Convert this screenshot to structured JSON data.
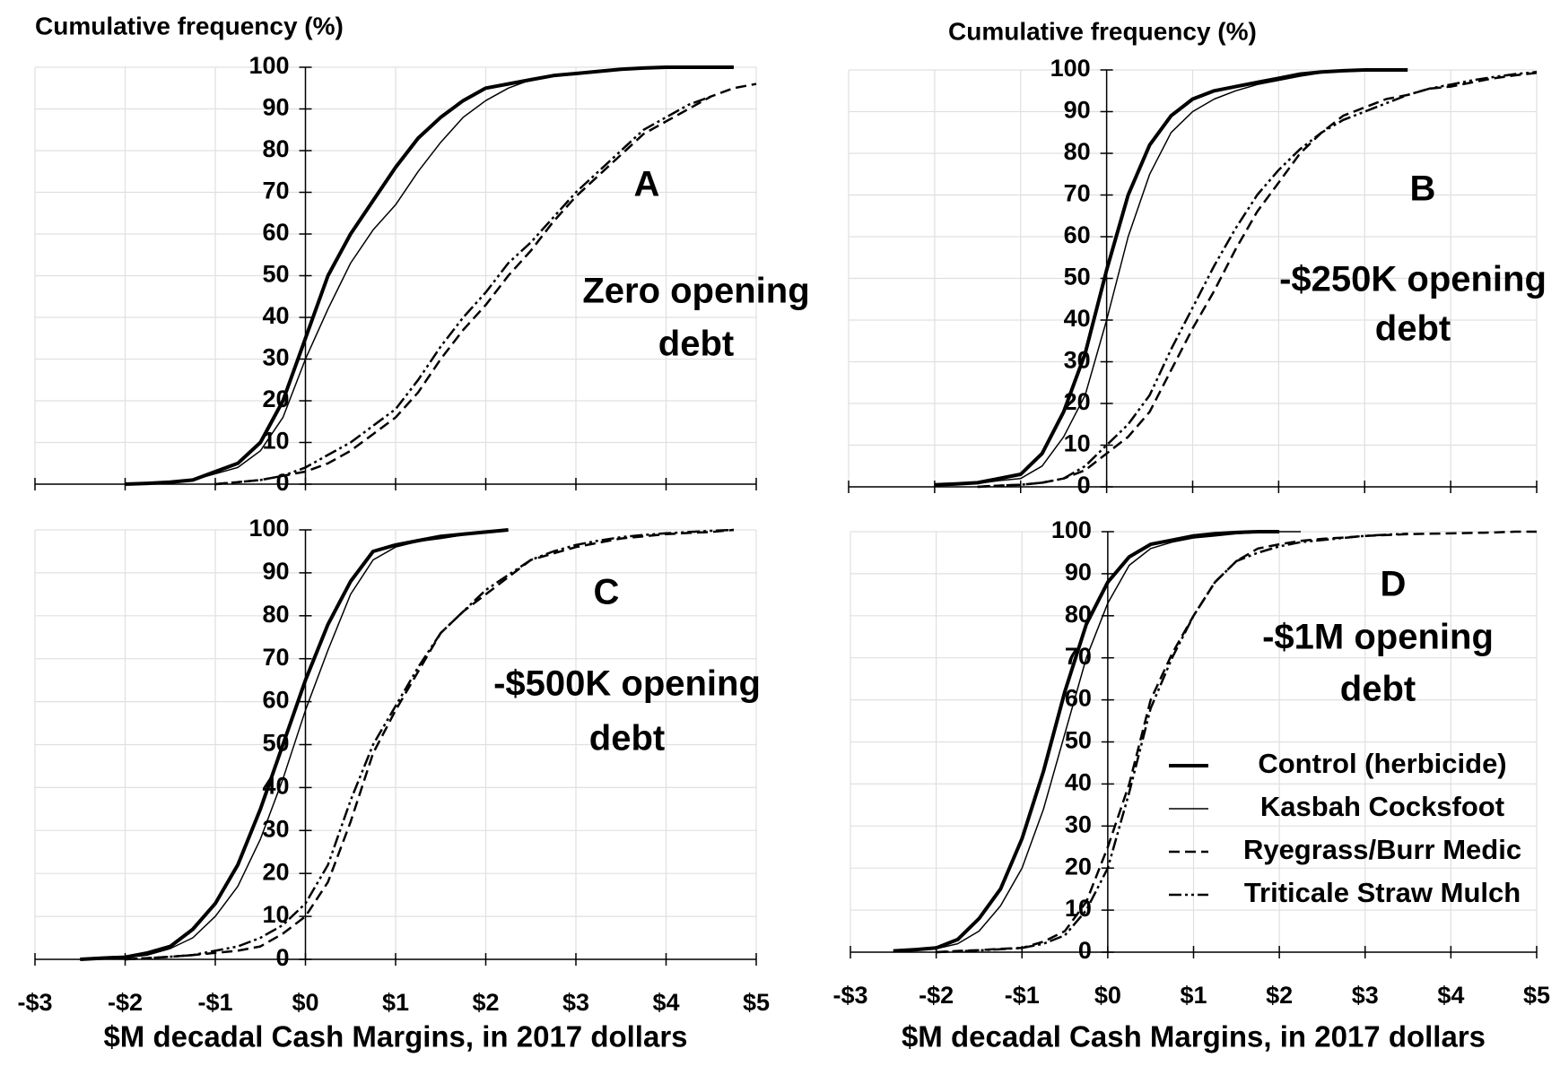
{
  "chart_data": [
    {
      "type": "line",
      "title": "Cumulative frequency (%)",
      "panel_label": "A",
      "annotations": [
        "Zero opening",
        "debt"
      ],
      "x": [
        -2.5,
        -2.25,
        -2,
        -1.75,
        -1.5,
        -1.25,
        -1,
        -0.75,
        -0.5,
        -0.25,
        0,
        0.25,
        0.5,
        0.75,
        1,
        1.25,
        1.5,
        1.75,
        2,
        2.25,
        2.5,
        2.75,
        3,
        3.25,
        3.5,
        3.75,
        4,
        4.25,
        4.5,
        4.75,
        5
      ],
      "xlim": [
        -3,
        5
      ],
      "xticks": [
        -3,
        -2,
        -1,
        0,
        1,
        2,
        3,
        4,
        5
      ],
      "ylim": [
        0,
        100
      ],
      "yticks": [
        0,
        10,
        20,
        30,
        40,
        50,
        60,
        70,
        80,
        90,
        100
      ],
      "grid": true,
      "series": [
        {
          "color": "#000000",
          "width": 4,
          "values": [
            null,
            null,
            0,
            0.2,
            0.5,
            1,
            3,
            5,
            10,
            20,
            35,
            50,
            60,
            68,
            76,
            83,
            88,
            92,
            95,
            96,
            97,
            98,
            98.5,
            99,
            99.5,
            99.8,
            100,
            100,
            100,
            100,
            null
          ]
        },
        {
          "color": "#000000",
          "width": 1.5,
          "values": [
            null,
            null,
            0,
            0.2,
            0.5,
            1,
            2.5,
            4,
            8,
            16,
            30,
            42,
            53,
            61,
            67,
            75,
            82,
            88,
            92,
            95,
            97,
            98,
            98.5,
            99,
            99.5,
            99.8,
            100,
            100,
            100,
            100,
            null
          ]
        },
        {
          "color": "#000000",
          "width": 2.5,
          "dash": "12 6",
          "values": [
            null,
            null,
            null,
            null,
            null,
            null,
            0,
            0.5,
            1,
            2,
            3,
            5,
            8,
            12,
            16,
            22,
            30,
            37,
            43,
            50,
            56,
            63,
            69,
            74,
            79,
            84,
            87,
            90,
            93,
            95,
            96
          ]
        },
        {
          "color": "#000000",
          "width": 2.5,
          "dash": "14 4 3 4 3 4",
          "values": [
            null,
            null,
            null,
            null,
            null,
            null,
            0,
            0.5,
            1,
            2,
            4,
            7,
            10,
            14,
            18,
            25,
            33,
            40,
            46,
            53,
            58,
            64,
            70,
            75,
            80,
            85,
            88,
            91,
            93,
            null,
            null
          ]
        }
      ]
    },
    {
      "type": "line",
      "title": "Cumulative frequency (%)",
      "panel_label": "B",
      "annotations": [
        "-$250K opening",
        "debt"
      ],
      "x": [
        -2.5,
        -2.25,
        -2,
        -1.75,
        -1.5,
        -1.25,
        -1,
        -0.75,
        -0.5,
        -0.25,
        0,
        0.25,
        0.5,
        0.75,
        1,
        1.25,
        1.5,
        1.75,
        2,
        2.25,
        2.5,
        2.75,
        3,
        3.25,
        3.5,
        3.75,
        4,
        4.25,
        4.5,
        4.75,
        5
      ],
      "xlim": [
        -3,
        5
      ],
      "xticks": [
        -3,
        -2,
        -1,
        0,
        1,
        2,
        3,
        4,
        5
      ],
      "ylim": [
        0,
        100
      ],
      "yticks": [
        0,
        10,
        20,
        30,
        40,
        50,
        60,
        70,
        80,
        90,
        100
      ],
      "grid": true,
      "series": [
        {
          "color": "#000000",
          "width": 4,
          "values": [
            null,
            null,
            0.5,
            0.7,
            1,
            2,
            3,
            8,
            18,
            32,
            52,
            70,
            82,
            89,
            93,
            95,
            96,
            97,
            98,
            99,
            99.5,
            99.8,
            100,
            100,
            100,
            null,
            null,
            null,
            null,
            null,
            null
          ]
        },
        {
          "color": "#000000",
          "width": 1.5,
          "values": [
            null,
            null,
            0.3,
            0.5,
            0.8,
            1.5,
            2,
            5,
            12,
            22,
            40,
            60,
            75,
            85,
            90,
            93,
            95,
            96.5,
            97.5,
            98.5,
            99.3,
            99.7,
            100,
            100,
            null,
            null,
            null,
            null,
            null,
            null,
            null
          ]
        },
        {
          "color": "#000000",
          "width": 2.5,
          "dash": "12 6",
          "values": [
            null,
            null,
            null,
            null,
            0,
            0.3,
            0.5,
            1,
            2,
            4,
            8,
            12,
            18,
            28,
            38,
            47,
            57,
            66,
            73,
            80,
            85,
            89,
            91,
            93,
            94,
            95.5,
            96,
            97,
            98,
            98.7,
            99.3
          ]
        },
        {
          "color": "#000000",
          "width": 2.5,
          "dash": "14 4 3 4 3 4",
          "values": [
            null,
            null,
            null,
            null,
            0,
            0.3,
            0.5,
            1,
            2,
            5,
            10,
            15,
            22,
            33,
            43,
            53,
            62,
            70,
            76,
            81,
            85,
            88,
            90,
            92,
            94,
            95.5,
            96.5,
            97.5,
            98.3,
            99,
            99.5
          ]
        }
      ]
    },
    {
      "type": "line",
      "panel_label": "C",
      "annotations": [
        "-$500K opening",
        "debt"
      ],
      "x_label": "$M decadal Cash Margins, in 2017 dollars",
      "x": [
        -2.5,
        -2.25,
        -2,
        -1.75,
        -1.5,
        -1.25,
        -1,
        -0.75,
        -0.5,
        -0.25,
        0,
        0.25,
        0.5,
        0.75,
        1,
        1.25,
        1.5,
        1.75,
        2,
        2.25,
        2.5,
        2.75,
        3,
        3.25,
        3.5,
        3.75,
        4,
        4.25,
        4.5,
        4.75,
        5
      ],
      "xlim": [
        -3,
        5
      ],
      "xticks": [
        {
          "value": -3,
          "label": "-$3"
        },
        {
          "value": -2,
          "label": "-$2"
        },
        {
          "value": -1,
          "label": "-$1"
        },
        {
          "value": 0,
          "label": "$0"
        },
        {
          "value": 1,
          "label": "$1"
        },
        {
          "value": 2,
          "label": "$2"
        },
        {
          "value": 3,
          "label": "$3"
        },
        {
          "value": 4,
          "label": "$4"
        },
        {
          "value": 5,
          "label": "$5"
        }
      ],
      "ylim": [
        0,
        100
      ],
      "yticks": [
        0,
        10,
        20,
        30,
        40,
        50,
        60,
        70,
        80,
        90,
        100
      ],
      "grid": true,
      "series": [
        {
          "color": "#000000",
          "width": 4,
          "values": [
            0,
            0.3,
            0.5,
            1.5,
            3,
            7,
            13,
            22,
            35,
            50,
            65,
            78,
            88,
            95,
            96.5,
            97.5,
            98.5,
            99,
            99.5,
            100,
            null,
            null,
            null,
            null,
            null,
            null,
            null,
            null,
            null,
            null,
            null
          ]
        },
        {
          "color": "#000000",
          "width": 1.5,
          "values": [
            0,
            0.2,
            0.4,
            1,
            2.5,
            5,
            10,
            17,
            28,
            42,
            58,
            72,
            85,
            93,
            96,
            97.3,
            98,
            98.8,
            99.5,
            100,
            null,
            null,
            null,
            null,
            null,
            null,
            null,
            null,
            null,
            null,
            null
          ]
        },
        {
          "color": "#000000",
          "width": 2.5,
          "dash": "12 6",
          "values": [
            null,
            null,
            0,
            0.3,
            0.6,
            1,
            1.5,
            2,
            3,
            6,
            10,
            18,
            32,
            48,
            58,
            67,
            76,
            81,
            85,
            89,
            93,
            94.5,
            96,
            97,
            98,
            98.5,
            99,
            99.3,
            99.5,
            100,
            null
          ]
        },
        {
          "color": "#000000",
          "width": 2.5,
          "dash": "14 4 3 4 3 4",
          "values": [
            null,
            null,
            0,
            0.3,
            0.6,
            1,
            2,
            3,
            5,
            8,
            13,
            22,
            37,
            50,
            59,
            68,
            76,
            81,
            86,
            89.5,
            93,
            95,
            96.5,
            97.5,
            98.3,
            98.8,
            99.2,
            99.5,
            99.8,
            100,
            null
          ]
        }
      ]
    },
    {
      "type": "line",
      "panel_label": "D",
      "annotations": [
        "-$1M opening",
        "debt"
      ],
      "x_label": "$M decadal Cash Margins, in 2017 dollars",
      "legend": "lower right",
      "x": [
        -2.5,
        -2.25,
        -2,
        -1.75,
        -1.5,
        -1.25,
        -1,
        -0.75,
        -0.5,
        -0.25,
        0,
        0.25,
        0.5,
        0.75,
        1,
        1.25,
        1.5,
        1.75,
        2,
        2.25,
        2.5,
        2.75,
        3,
        3.25,
        3.5,
        3.75,
        4,
        4.25,
        4.5,
        4.75,
        5
      ],
      "xlim": [
        -3,
        5
      ],
      "xticks": [
        {
          "value": -3,
          "label": "-$3"
        },
        {
          "value": -2,
          "label": "-$2"
        },
        {
          "value": -1,
          "label": "-$1"
        },
        {
          "value": 0,
          "label": "$0"
        },
        {
          "value": 1,
          "label": "$1"
        },
        {
          "value": 2,
          "label": "$2"
        },
        {
          "value": 3,
          "label": "$3"
        },
        {
          "value": 4,
          "label": "$4"
        },
        {
          "value": 5,
          "label": "$5"
        }
      ],
      "ylim": [
        0,
        100
      ],
      "yticks": [
        0,
        10,
        20,
        30,
        40,
        50,
        60,
        70,
        80,
        90,
        100
      ],
      "grid": true,
      "series": [
        {
          "name": "Control (herbicide)",
          "color": "#000000",
          "width": 4,
          "values": [
            0.3,
            0.6,
            1,
            3,
            8,
            15,
            27,
            43,
            62,
            78,
            88,
            94,
            97,
            98,
            99,
            99.5,
            99.8,
            100,
            100,
            null,
            null,
            null,
            null,
            null,
            null,
            null,
            null,
            null,
            null,
            null,
            null
          ]
        },
        {
          "name": "Kasbah Cocksfoot",
          "color": "#000000",
          "width": 1.5,
          "values": [
            0.2,
            0.4,
            0.8,
            2,
            5,
            11,
            20,
            34,
            52,
            70,
            83,
            92,
            96,
            97.5,
            98.5,
            99,
            99.5,
            99.8,
            100,
            100,
            null,
            null,
            null,
            null,
            null,
            null,
            null,
            null,
            null,
            null,
            null
          ]
        },
        {
          "name": "Ryegrass/Burr Medic",
          "color": "#000000",
          "width": 2.5,
          "dash": "12 6",
          "values": [
            null,
            null,
            0,
            0.3,
            0.5,
            0.8,
            1,
            2.5,
            5,
            12,
            25,
            40,
            60,
            71,
            80,
            88,
            93,
            96,
            97,
            97.8,
            98.3,
            98.6,
            99,
            99.2,
            99.4,
            99.5,
            99.6,
            99.7,
            99.8,
            100,
            100
          ]
        },
        {
          "name": "Triticale Straw Mulch",
          "color": "#000000",
          "width": 2.5,
          "dash": "14 4 3 4 3 4",
          "values": [
            null,
            null,
            0,
            0.2,
            0.4,
            0.7,
            1,
            2,
            4,
            10,
            20,
            38,
            58,
            70,
            80,
            88,
            93,
            95,
            96.5,
            97.5,
            98,
            98.5,
            99,
            99.3,
            99.5,
            null,
            null,
            null,
            null,
            null,
            null
          ]
        }
      ]
    }
  ]
}
